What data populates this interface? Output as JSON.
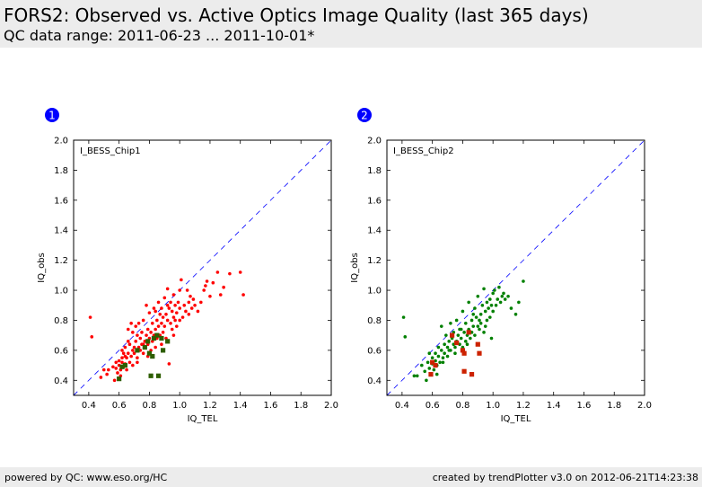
{
  "header": {
    "title": "FORS2: Observed vs. Active Optics Image Quality (last 365 days)",
    "subtitle": "QC data range: 2011-06-23 ... 2011-10-01*"
  },
  "footer": {
    "left": "powered by QC: www.eso.org/HC",
    "right": "created by trendPlotter v3.0 on 2012-06-21T14:23:38"
  },
  "colors": {
    "chip1_points": "#ff0000",
    "chip1_squares": "#2e5e00",
    "chip2_points": "#008000",
    "chip2_squares": "#cc2200",
    "diagonal": "#0000ff",
    "badge": "#0000ff"
  },
  "chart_data": [
    {
      "type": "scatter",
      "badge": "1",
      "annotation": "I_BESS_Chip1",
      "xlabel": "IQ_TEL",
      "ylabel": "IQ_obs",
      "xlim": [
        0.3,
        2.0
      ],
      "ylim": [
        0.3,
        2.0
      ],
      "xticks": [
        "0.4",
        "0.6",
        "0.8",
        "1.0",
        "1.2",
        "1.4",
        "1.6",
        "1.8",
        "2.0"
      ],
      "yticks": [
        "0.4",
        "0.6",
        "0.8",
        "1.0",
        "1.2",
        "1.4",
        "1.6",
        "1.8",
        "2.0"
      ],
      "diagonal": "y = x",
      "series": [
        {
          "marker": "dot",
          "points": [
            [
              0.41,
              0.82
            ],
            [
              0.42,
              0.69
            ],
            [
              0.48,
              0.42
            ],
            [
              0.5,
              0.47
            ],
            [
              0.52,
              0.44
            ],
            [
              0.53,
              0.47
            ],
            [
              0.56,
              0.49
            ],
            [
              0.58,
              0.52
            ],
            [
              0.58,
              0.48
            ],
            [
              0.59,
              0.45
            ],
            [
              0.6,
              0.53
            ],
            [
              0.6,
              0.5
            ],
            [
              0.61,
              0.43
            ],
            [
              0.61,
              0.47
            ],
            [
              0.62,
              0.52
            ],
            [
              0.62,
              0.55
            ],
            [
              0.63,
              0.49
            ],
            [
              0.63,
              0.58
            ],
            [
              0.64,
              0.51
            ],
            [
              0.64,
              0.62
            ],
            [
              0.65,
              0.55
            ],
            [
              0.65,
              0.47
            ],
            [
              0.66,
              0.58
            ],
            [
              0.66,
              0.74
            ],
            [
              0.67,
              0.52
            ],
            [
              0.67,
              0.64
            ],
            [
              0.68,
              0.56
            ],
            [
              0.68,
              0.78
            ],
            [
              0.69,
              0.6
            ],
            [
              0.69,
              0.5
            ],
            [
              0.7,
              0.62
            ],
            [
              0.7,
              0.58
            ],
            [
              0.71,
              0.76
            ],
            [
              0.71,
              0.66
            ],
            [
              0.72,
              0.55
            ],
            [
              0.72,
              0.7
            ],
            [
              0.73,
              0.62
            ],
            [
              0.73,
              0.78
            ],
            [
              0.74,
              0.6
            ],
            [
              0.74,
              0.68
            ],
            [
              0.75,
              0.64
            ],
            [
              0.75,
              0.72
            ],
            [
              0.76,
              0.58
            ],
            [
              0.76,
              0.8
            ],
            [
              0.77,
              0.66
            ],
            [
              0.77,
              0.62
            ],
            [
              0.78,
              0.7
            ],
            [
              0.78,
              0.9
            ],
            [
              0.79,
              0.64
            ],
            [
              0.79,
              0.74
            ],
            [
              0.8,
              0.68
            ],
            [
              0.8,
              0.85
            ],
            [
              0.81,
              0.72
            ],
            [
              0.81,
              0.6
            ],
            [
              0.82,
              0.78
            ],
            [
              0.82,
              0.66
            ],
            [
              0.83,
              0.7
            ],
            [
              0.83,
              0.88
            ],
            [
              0.84,
              0.74
            ],
            [
              0.84,
              0.62
            ],
            [
              0.85,
              0.8
            ],
            [
              0.85,
              0.68
            ],
            [
              0.86,
              0.76
            ],
            [
              0.86,
              0.92
            ],
            [
              0.87,
              0.7
            ],
            [
              0.87,
              0.84
            ],
            [
              0.88,
              0.78
            ],
            [
              0.88,
              0.64
            ],
            [
              0.89,
              0.82
            ],
            [
              0.89,
              0.72
            ],
            [
              0.9,
              0.76
            ],
            [
              0.9,
              0.95
            ],
            [
              0.91,
              0.84
            ],
            [
              0.91,
              0.68
            ],
            [
              0.92,
              0.8
            ],
            [
              0.92,
              1.01
            ],
            [
              0.93,
              0.88
            ],
            [
              0.93,
              0.51
            ],
            [
              0.94,
              0.78
            ],
            [
              0.94,
              0.92
            ],
            [
              0.95,
              0.86
            ],
            [
              0.95,
              0.74
            ],
            [
              0.96,
              0.82
            ],
            [
              0.96,
              0.97
            ],
            [
              0.97,
              0.9
            ],
            [
              0.97,
              0.8
            ],
            [
              0.98,
              0.85
            ],
            [
              0.98,
              0.76
            ],
            [
              0.99,
              0.92
            ],
            [
              1.0,
              0.88
            ],
            [
              1.0,
              0.8
            ],
            [
              1.01,
              1.07
            ],
            [
              1.02,
              0.82
            ],
            [
              1.03,
              0.9
            ],
            [
              1.04,
              0.86
            ],
            [
              1.05,
              1.0
            ],
            [
              1.06,
              0.92
            ],
            [
              1.07,
              0.96
            ],
            [
              1.08,
              0.88
            ],
            [
              1.09,
              0.94
            ],
            [
              1.1,
              0.9
            ],
            [
              1.12,
              0.86
            ],
            [
              1.14,
              0.92
            ],
            [
              1.16,
              1.0
            ],
            [
              1.17,
              1.03
            ],
            [
              1.18,
              1.06
            ],
            [
              1.2,
              0.96
            ],
            [
              1.22,
              1.05
            ],
            [
              1.25,
              1.12
            ],
            [
              1.27,
              0.97
            ],
            [
              1.29,
              1.02
            ],
            [
              1.33,
              1.11
            ],
            [
              1.4,
              1.12
            ],
            [
              1.42,
              0.97
            ],
            [
              0.57,
              0.4
            ],
            [
              0.62,
              0.6
            ],
            [
              0.64,
              0.56
            ],
            [
              0.66,
              0.66
            ],
            [
              0.69,
              0.72
            ],
            [
              0.72,
              0.52
            ],
            [
              0.76,
              0.64
            ],
            [
              0.79,
              0.56
            ],
            [
              0.84,
              0.86
            ],
            [
              0.88,
              0.88
            ],
            [
              0.92,
              0.9
            ],
            [
              0.96,
              0.7
            ],
            [
              1.0,
              1.0
            ],
            [
              1.06,
              0.84
            ]
          ]
        },
        {
          "marker": "square",
          "points": [
            [
              0.6,
              0.41
            ],
            [
              0.62,
              0.49
            ],
            [
              0.64,
              0.5
            ],
            [
              0.72,
              0.6
            ],
            [
              0.77,
              0.62
            ],
            [
              0.79,
              0.66
            ],
            [
              0.8,
              0.58
            ],
            [
              0.81,
              0.43
            ],
            [
              0.82,
              0.56
            ],
            [
              0.83,
              0.68
            ],
            [
              0.85,
              0.7
            ],
            [
              0.86,
              0.43
            ],
            [
              0.88,
              0.68
            ],
            [
              0.89,
              0.6
            ],
            [
              0.92,
              0.66
            ]
          ]
        }
      ]
    },
    {
      "type": "scatter",
      "badge": "2",
      "annotation": "I_BESS_Chip2",
      "xlabel": "IQ_TEL",
      "ylabel": "IQ_obs",
      "xlim": [
        0.3,
        2.0
      ],
      "ylim": [
        0.3,
        2.0
      ],
      "xticks": [
        "0.4",
        "0.6",
        "0.8",
        "1.0",
        "1.2",
        "1.4",
        "1.6",
        "1.8",
        "2.0"
      ],
      "yticks": [
        "0.4",
        "0.6",
        "0.8",
        "1.0",
        "1.2",
        "1.4",
        "1.6",
        "1.8",
        "2.0"
      ],
      "diagonal": "y = x",
      "series": [
        {
          "marker": "dot",
          "points": [
            [
              0.41,
              0.82
            ],
            [
              0.42,
              0.69
            ],
            [
              0.48,
              0.43
            ],
            [
              0.5,
              0.43
            ],
            [
              0.53,
              0.5
            ],
            [
              0.55,
              0.46
            ],
            [
              0.57,
              0.52
            ],
            [
              0.58,
              0.48
            ],
            [
              0.59,
              0.44
            ],
            [
              0.6,
              0.51
            ],
            [
              0.6,
              0.55
            ],
            [
              0.61,
              0.47
            ],
            [
              0.62,
              0.53
            ],
            [
              0.62,
              0.58
            ],
            [
              0.63,
              0.5
            ],
            [
              0.64,
              0.56
            ],
            [
              0.64,
              0.62
            ],
            [
              0.65,
              0.52
            ],
            [
              0.66,
              0.6
            ],
            [
              0.66,
              0.76
            ],
            [
              0.67,
              0.55
            ],
            [
              0.68,
              0.64
            ],
            [
              0.68,
              0.58
            ],
            [
              0.69,
              0.7
            ],
            [
              0.7,
              0.62
            ],
            [
              0.7,
              0.56
            ],
            [
              0.71,
              0.66
            ],
            [
              0.72,
              0.78
            ],
            [
              0.72,
              0.6
            ],
            [
              0.73,
              0.68
            ],
            [
              0.74,
              0.64
            ],
            [
              0.74,
              0.72
            ],
            [
              0.75,
              0.62
            ],
            [
              0.76,
              0.8
            ],
            [
              0.76,
              0.66
            ],
            [
              0.77,
              0.7
            ],
            [
              0.78,
              0.74
            ],
            [
              0.78,
              0.64
            ],
            [
              0.79,
              0.68
            ],
            [
              0.8,
              0.86
            ],
            [
              0.8,
              0.62
            ],
            [
              0.81,
              0.72
            ],
            [
              0.82,
              0.78
            ],
            [
              0.82,
              0.66
            ],
            [
              0.83,
              0.7
            ],
            [
              0.84,
              0.92
            ],
            [
              0.84,
              0.74
            ],
            [
              0.85,
              0.68
            ],
            [
              0.86,
              0.8
            ],
            [
              0.86,
              0.72
            ],
            [
              0.87,
              0.76
            ],
            [
              0.88,
              0.88
            ],
            [
              0.88,
              0.7
            ],
            [
              0.89,
              0.82
            ],
            [
              0.9,
              0.76
            ],
            [
              0.9,
              0.96
            ],
            [
              0.91,
              0.74
            ],
            [
              0.92,
              0.84
            ],
            [
              0.92,
              0.78
            ],
            [
              0.93,
              0.9
            ],
            [
              0.94,
              0.72
            ],
            [
              0.94,
              1.01
            ],
            [
              0.95,
              0.86
            ],
            [
              0.96,
              0.8
            ],
            [
              0.96,
              0.92
            ],
            [
              0.97,
              0.88
            ],
            [
              0.98,
              0.94
            ],
            [
              0.98,
              0.82
            ],
            [
              0.99,
              0.9
            ],
            [
              1.0,
              0.86
            ],
            [
              1.0,
              0.98
            ],
            [
              1.01,
              1.0
            ],
            [
              1.02,
              0.9
            ],
            [
              1.03,
              0.94
            ],
            [
              1.04,
              1.02
            ],
            [
              1.05,
              0.92
            ],
            [
              1.06,
              0.96
            ],
            [
              1.07,
              0.98
            ],
            [
              1.08,
              0.94
            ],
            [
              1.1,
              0.96
            ],
            [
              1.12,
              0.88
            ],
            [
              1.15,
              0.84
            ],
            [
              1.17,
              0.92
            ],
            [
              1.2,
              1.06
            ],
            [
              0.56,
              0.4
            ],
            [
              0.63,
              0.44
            ],
            [
              0.67,
              0.52
            ],
            [
              0.71,
              0.6
            ],
            [
              0.75,
              0.58
            ],
            [
              0.79,
              0.74
            ],
            [
              0.83,
              0.64
            ],
            [
              0.87,
              0.84
            ],
            [
              0.91,
              0.8
            ],
            [
              0.95,
              0.76
            ],
            [
              0.99,
              0.68
            ],
            [
              0.58,
              0.58
            ]
          ]
        },
        {
          "marker": "square",
          "points": [
            [
              0.59,
              0.44
            ],
            [
              0.6,
              0.52
            ],
            [
              0.62,
              0.5
            ],
            [
              0.73,
              0.7
            ],
            [
              0.76,
              0.65
            ],
            [
              0.8,
              0.6
            ],
            [
              0.81,
              0.58
            ],
            [
              0.81,
              0.46
            ],
            [
              0.84,
              0.72
            ],
            [
              0.86,
              0.44
            ],
            [
              0.9,
              0.64
            ],
            [
              0.91,
              0.58
            ]
          ]
        }
      ]
    }
  ]
}
